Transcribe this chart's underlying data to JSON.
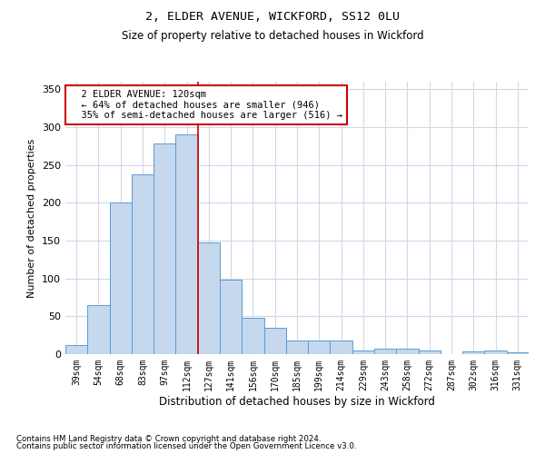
{
  "title1": "2, ELDER AVENUE, WICKFORD, SS12 0LU",
  "title2": "Size of property relative to detached houses in Wickford",
  "xlabel": "Distribution of detached houses by size in Wickford",
  "ylabel": "Number of detached properties",
  "categories": [
    "39sqm",
    "54sqm",
    "68sqm",
    "83sqm",
    "97sqm",
    "112sqm",
    "127sqm",
    "141sqm",
    "156sqm",
    "170sqm",
    "185sqm",
    "199sqm",
    "214sqm",
    "229sqm",
    "243sqm",
    "258sqm",
    "272sqm",
    "287sqm",
    "302sqm",
    "316sqm",
    "331sqm"
  ],
  "values": [
    12,
    65,
    200,
    238,
    278,
    290,
    148,
    98,
    48,
    35,
    18,
    18,
    18,
    5,
    7,
    7,
    5,
    0,
    4,
    5,
    2
  ],
  "bar_color": "#c5d8ed",
  "bar_edge_color": "#5b9bd5",
  "grid_color": "#d0d8e8",
  "property_line_x": 5.5,
  "annotation_text": "  2 ELDER AVENUE: 120sqm\n  ← 64% of detached houses are smaller (946)\n  35% of semi-detached houses are larger (516) →",
  "annotation_box_color": "#ffffff",
  "annotation_box_edge": "#cc0000",
  "property_line_color": "#cc0000",
  "footer1": "Contains HM Land Registry data © Crown copyright and database right 2024.",
  "footer2": "Contains public sector information licensed under the Open Government Licence v3.0.",
  "ylim": [
    0,
    360
  ],
  "yticks": [
    0,
    50,
    100,
    150,
    200,
    250,
    300,
    350
  ]
}
